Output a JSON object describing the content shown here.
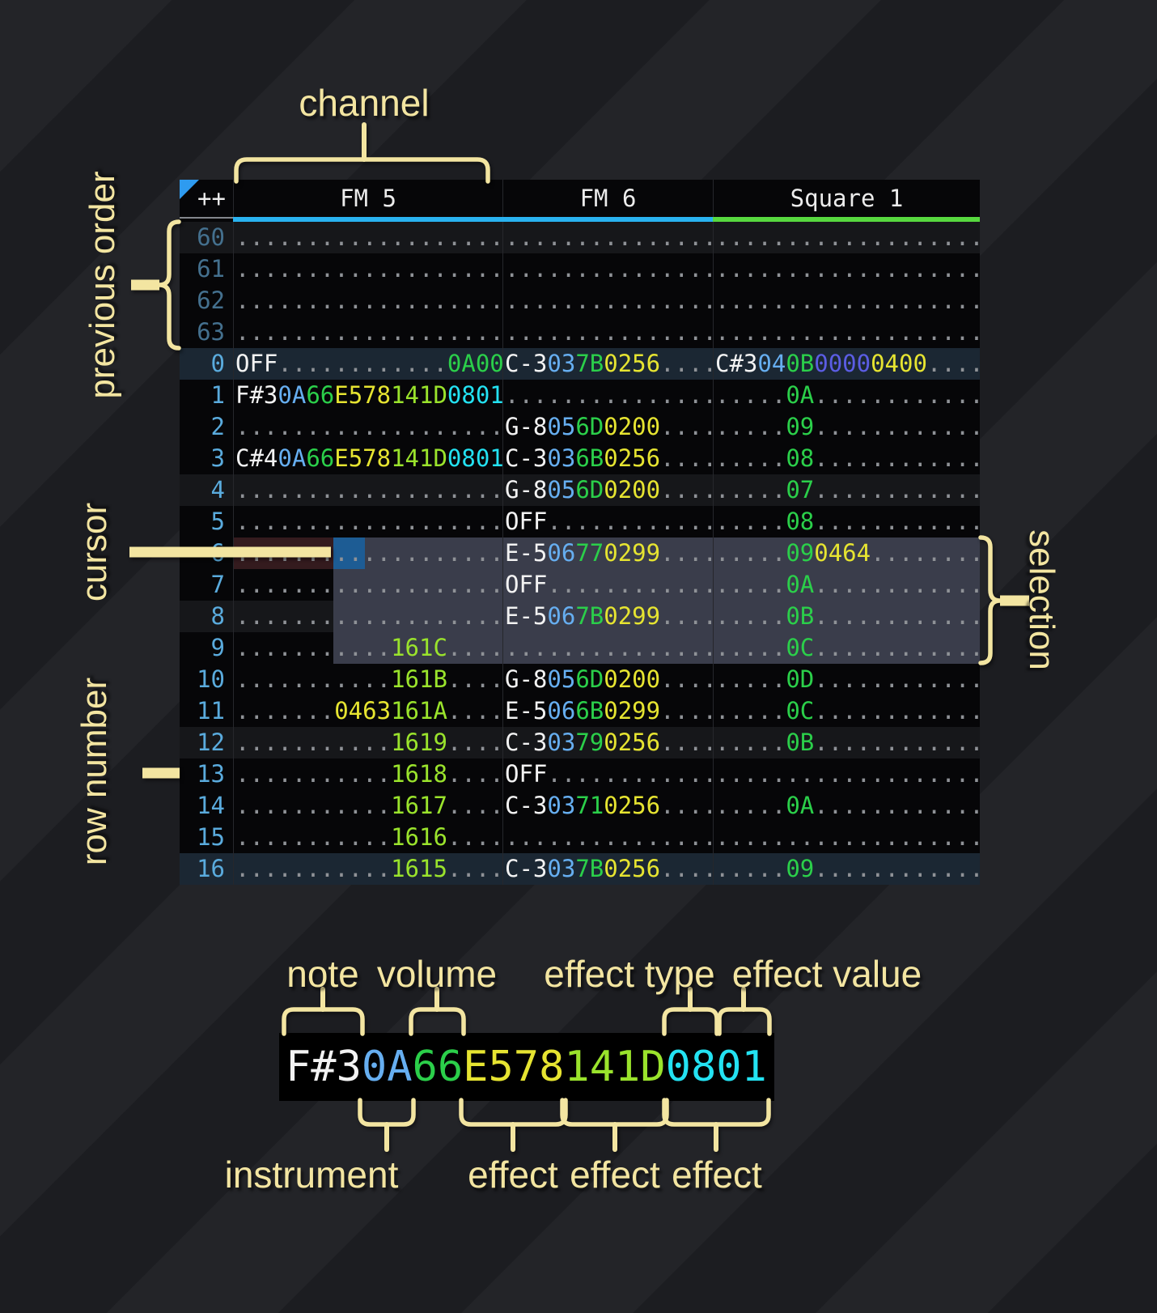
{
  "labels": {
    "channel": "channel",
    "previous_order": "previous order",
    "cursor": "cursor",
    "row_number": "row number",
    "selection": "selection",
    "note": "note",
    "volume": "volume",
    "effect_type": "effect type",
    "effect_value": "effect value",
    "instrument": "instrument",
    "effect": "effect"
  },
  "tracker": {
    "corner": "++",
    "channels": [
      {
        "name": "FM 5",
        "bar_color": "#29b2ef"
      },
      {
        "name": "FM 6",
        "bar_color": "#29b2ef"
      },
      {
        "name": "Square 1",
        "bar_color": "#57d83f"
      }
    ],
    "colors": {
      "note": "#f2f2f2",
      "instrument": "#66aef0",
      "volume": "#2bcf4a",
      "effect_yellow": "#e6e431",
      "effect_lime": "#9ae32c",
      "effect_cyan": "#23e2f2",
      "effect_purple": "#5b5de4",
      "selection_bg": "#3a3d4b",
      "cursor_bg": "#1d5c94",
      "cursor_row_bg": "#341b1e",
      "row_highlight_weak": "#16171a",
      "row_highlight_strong": "#1b2733",
      "row_number": "#5aabdd",
      "row_number_dim": "#44708e",
      "annotation": "#f3e5a1"
    },
    "rows": [
      {
        "n": "60",
        "dim": true,
        "hl": "w",
        "c": [
          [
            [
              "...................",
              "d"
            ]
          ],
          [
            [
              "...............",
              "d"
            ]
          ],
          [
            [
              "...................",
              "d"
            ]
          ]
        ]
      },
      {
        "n": "61",
        "dim": true,
        "hl": "",
        "c": [
          [
            [
              "...................",
              "d"
            ]
          ],
          [
            [
              "...............",
              "d"
            ]
          ],
          [
            [
              "...................",
              "d"
            ]
          ]
        ]
      },
      {
        "n": "62",
        "dim": true,
        "hl": "",
        "c": [
          [
            [
              "...................",
              "d"
            ]
          ],
          [
            [
              "...............",
              "d"
            ]
          ],
          [
            [
              "...................",
              "d"
            ]
          ]
        ]
      },
      {
        "n": "63",
        "dim": true,
        "hl": "",
        "c": [
          [
            [
              "...................",
              "d"
            ]
          ],
          [
            [
              "...............",
              "d"
            ]
          ],
          [
            [
              "...................",
              "d"
            ]
          ]
        ]
      },
      {
        "n": "0",
        "hl": "s",
        "c": [
          [
            [
              "OFF",
              "n"
            ],
            [
              "............",
              "d"
            ],
            [
              "0A00",
              "g"
            ]
          ],
          [
            [
              "C-3",
              "n"
            ],
            [
              "03",
              "i"
            ],
            [
              "7B",
              "v"
            ],
            [
              "0256",
              "y"
            ],
            [
              "....",
              "d"
            ]
          ],
          [
            [
              "C#3",
              "n"
            ],
            [
              "04",
              "i"
            ],
            [
              "0B",
              "v"
            ],
            [
              "0000",
              "p"
            ],
            [
              "0400",
              "y"
            ],
            [
              "....",
              "d"
            ]
          ]
        ]
      },
      {
        "n": "1",
        "hl": "",
        "c": [
          [
            [
              "F#3",
              "n"
            ],
            [
              "0A",
              "i"
            ],
            [
              "66",
              "v"
            ],
            [
              "E578",
              "y"
            ],
            [
              "141D",
              "l"
            ],
            [
              "0801",
              "c"
            ]
          ],
          [
            [
              "...............",
              "d"
            ]
          ],
          [
            [
              ".....",
              "d"
            ],
            [
              "0A",
              "v"
            ],
            [
              "............",
              "d"
            ]
          ]
        ]
      },
      {
        "n": "2",
        "hl": "",
        "c": [
          [
            [
              "...................",
              "d"
            ]
          ],
          [
            [
              "G-8",
              "n"
            ],
            [
              "05",
              "i"
            ],
            [
              "6D",
              "v"
            ],
            [
              "0200",
              "y"
            ],
            [
              "....",
              "d"
            ]
          ],
          [
            [
              ".....",
              "d"
            ],
            [
              "09",
              "v"
            ],
            [
              "............",
              "d"
            ]
          ]
        ]
      },
      {
        "n": "3",
        "hl": "",
        "c": [
          [
            [
              "C#4",
              "n"
            ],
            [
              "0A",
              "i"
            ],
            [
              "66",
              "v"
            ],
            [
              "E578",
              "y"
            ],
            [
              "141D",
              "l"
            ],
            [
              "0801",
              "c"
            ]
          ],
          [
            [
              "C-3",
              "n"
            ],
            [
              "03",
              "i"
            ],
            [
              "6B",
              "v"
            ],
            [
              "0256",
              "y"
            ],
            [
              "....",
              "d"
            ]
          ],
          [
            [
              ".....",
              "d"
            ],
            [
              "08",
              "v"
            ],
            [
              "............",
              "d"
            ]
          ]
        ]
      },
      {
        "n": "4",
        "hl": "w",
        "c": [
          [
            [
              "...................",
              "d"
            ]
          ],
          [
            [
              "G-8",
              "n"
            ],
            [
              "05",
              "i"
            ],
            [
              "6D",
              "v"
            ],
            [
              "0200",
              "y"
            ],
            [
              "....",
              "d"
            ]
          ],
          [
            [
              ".....",
              "d"
            ],
            [
              "07",
              "v"
            ],
            [
              "............",
              "d"
            ]
          ]
        ]
      },
      {
        "n": "5",
        "hl": "",
        "c": [
          [
            [
              "...................",
              "d"
            ]
          ],
          [
            [
              "OFF",
              "n"
            ],
            [
              "............",
              "d"
            ]
          ],
          [
            [
              ".....",
              "d"
            ],
            [
              "08",
              "v"
            ],
            [
              "............",
              "d"
            ]
          ]
        ]
      },
      {
        "n": "6",
        "hl": "",
        "c": [
          [
            [
              "...................",
              "d"
            ]
          ],
          [
            [
              "E-5",
              "n"
            ],
            [
              "06",
              "i"
            ],
            [
              "77",
              "v"
            ],
            [
              "0299",
              "y"
            ],
            [
              "....",
              "d"
            ]
          ],
          [
            [
              ".....",
              "d"
            ],
            [
              "09",
              "v"
            ],
            [
              "0464",
              "y"
            ],
            [
              "........",
              "d"
            ]
          ]
        ]
      },
      {
        "n": "7",
        "hl": "",
        "c": [
          [
            [
              "...................",
              "d"
            ]
          ],
          [
            [
              "OFF",
              "n"
            ],
            [
              "............",
              "d"
            ]
          ],
          [
            [
              ".....",
              "d"
            ],
            [
              "0A",
              "v"
            ],
            [
              "............",
              "d"
            ]
          ]
        ]
      },
      {
        "n": "8",
        "hl": "w",
        "c": [
          [
            [
              "...................",
              "d"
            ]
          ],
          [
            [
              "E-5",
              "n"
            ],
            [
              "06",
              "i"
            ],
            [
              "7B",
              "v"
            ],
            [
              "0299",
              "y"
            ],
            [
              "....",
              "d"
            ]
          ],
          [
            [
              ".....",
              "d"
            ],
            [
              "0B",
              "v"
            ],
            [
              "............",
              "d"
            ]
          ]
        ]
      },
      {
        "n": "9",
        "hl": "",
        "c": [
          [
            [
              "...........",
              "d"
            ],
            [
              "161C",
              "l"
            ],
            [
              "....",
              "d"
            ]
          ],
          [
            [
              "...............",
              "d"
            ]
          ],
          [
            [
              ".....",
              "d"
            ],
            [
              "0C",
              "v"
            ],
            [
              "............",
              "d"
            ]
          ]
        ]
      },
      {
        "n": "10",
        "hl": "",
        "c": [
          [
            [
              "...........",
              "d"
            ],
            [
              "161B",
              "l"
            ],
            [
              "....",
              "d"
            ]
          ],
          [
            [
              "G-8",
              "n"
            ],
            [
              "05",
              "i"
            ],
            [
              "6D",
              "v"
            ],
            [
              "0200",
              "y"
            ],
            [
              "....",
              "d"
            ]
          ],
          [
            [
              ".....",
              "d"
            ],
            [
              "0D",
              "v"
            ],
            [
              "............",
              "d"
            ]
          ]
        ]
      },
      {
        "n": "11",
        "hl": "",
        "c": [
          [
            [
              ".......",
              "d"
            ],
            [
              "0463",
              "y"
            ],
            [
              "161A",
              "l"
            ],
            [
              "....",
              "d"
            ]
          ],
          [
            [
              "E-5",
              "n"
            ],
            [
              "06",
              "i"
            ],
            [
              "6B",
              "v"
            ],
            [
              "0299",
              "y"
            ],
            [
              "....",
              "d"
            ]
          ],
          [
            [
              ".....",
              "d"
            ],
            [
              "0C",
              "v"
            ],
            [
              "............",
              "d"
            ]
          ]
        ]
      },
      {
        "n": "12",
        "hl": "w",
        "c": [
          [
            [
              "...........",
              "d"
            ],
            [
              "1619",
              "l"
            ],
            [
              "....",
              "d"
            ]
          ],
          [
            [
              "C-3",
              "n"
            ],
            [
              "03",
              "i"
            ],
            [
              "79",
              "v"
            ],
            [
              "0256",
              "y"
            ],
            [
              "....",
              "d"
            ]
          ],
          [
            [
              ".....",
              "d"
            ],
            [
              "0B",
              "v"
            ],
            [
              "............",
              "d"
            ]
          ]
        ]
      },
      {
        "n": "13",
        "hl": "",
        "c": [
          [
            [
              "...........",
              "d"
            ],
            [
              "1618",
              "l"
            ],
            [
              "....",
              "d"
            ]
          ],
          [
            [
              "OFF",
              "n"
            ],
            [
              "............",
              "d"
            ]
          ],
          [
            [
              "...................",
              "d"
            ]
          ]
        ]
      },
      {
        "n": "14",
        "hl": "",
        "c": [
          [
            [
              "...........",
              "d"
            ],
            [
              "1617",
              "l"
            ],
            [
              "....",
              "d"
            ]
          ],
          [
            [
              "C-3",
              "n"
            ],
            [
              "03",
              "i"
            ],
            [
              "71",
              "v"
            ],
            [
              "0256",
              "y"
            ],
            [
              "....",
              "d"
            ]
          ],
          [
            [
              ".....",
              "d"
            ],
            [
              "0A",
              "v"
            ],
            [
              "............",
              "d"
            ]
          ]
        ]
      },
      {
        "n": "15",
        "hl": "",
        "c": [
          [
            [
              "...........",
              "d"
            ],
            [
              "1616",
              "l"
            ],
            [
              "....",
              "d"
            ]
          ],
          [
            [
              "...............",
              "d"
            ]
          ],
          [
            [
              "...................",
              "d"
            ]
          ]
        ]
      },
      {
        "n": "16",
        "hl": "s",
        "c": [
          [
            [
              "...........",
              "d"
            ],
            [
              "1615",
              "l"
            ],
            [
              "....",
              "d"
            ]
          ],
          [
            [
              "C-3",
              "n"
            ],
            [
              "03",
              "i"
            ],
            [
              "7B",
              "v"
            ],
            [
              "0256",
              "y"
            ],
            [
              "....",
              "d"
            ]
          ],
          [
            [
              ".....",
              "d"
            ],
            [
              "09",
              "v"
            ],
            [
              "............",
              "d"
            ]
          ]
        ]
      }
    ],
    "cursor": {
      "row": "6",
      "channel": "FM 5"
    },
    "selection": {
      "rows": "6-9"
    }
  },
  "example_cell": {
    "segments": [
      [
        "F#3",
        "n"
      ],
      [
        "0A",
        "i"
      ],
      [
        "66",
        "v"
      ],
      [
        "E578",
        "y"
      ],
      [
        "141D",
        "l"
      ],
      [
        "0801",
        "c"
      ]
    ]
  }
}
